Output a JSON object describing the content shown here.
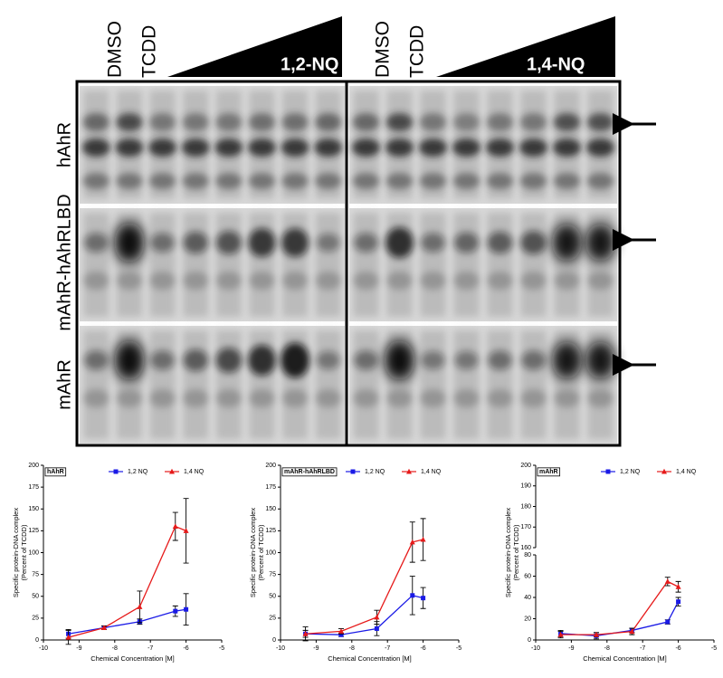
{
  "gel": {
    "lanes_left": [
      "DMSO",
      "TCDD"
    ],
    "treatment_left": "1,2-NQ",
    "lanes_right": [
      "DMSO",
      "TCDD"
    ],
    "treatment_right": "1,4-NQ",
    "rows": [
      "hAhR",
      "mAhR-hAhRLBD",
      "mAhR"
    ]
  },
  "chart_data": [
    {
      "type": "line",
      "title": "hAhR",
      "xlabel": "Chemical Concentration [M]",
      "ylabel": [
        "Specific protein-DNA complex",
        "(Percent of TCDD)"
      ],
      "x": [
        -9.3,
        -8.3,
        -7.3,
        -6.3,
        -6.0
      ],
      "xlim": [
        -10,
        -5
      ],
      "xticks": [
        -10,
        -9,
        -8,
        -7,
        -6,
        -5
      ],
      "ylim": [
        0,
        200
      ],
      "yticks": [
        0,
        25,
        50,
        75,
        100,
        125,
        150,
        175,
        200
      ],
      "series": [
        {
          "name": "1,2 NQ",
          "color": "#1a1ae6",
          "marker": "square",
          "values": [
            7,
            14,
            21,
            33,
            35
          ],
          "errors": [
            5,
            2,
            3,
            6,
            18
          ]
        },
        {
          "name": "1,4 NQ",
          "color": "#e61a1a",
          "marker": "triangle",
          "values": [
            3,
            14,
            38,
            130,
            125
          ],
          "errors": [
            8,
            2,
            18,
            16,
            37
          ]
        }
      ]
    },
    {
      "type": "line",
      "title": "mAhR-hAhRLBD",
      "xlabel": "Chemical Concentration [M]",
      "ylabel": [
        "Specific protein-DNA complex",
        "(Percent of TCDD)"
      ],
      "x": [
        -9.3,
        -8.3,
        -7.3,
        -6.3,
        -6.0
      ],
      "xlim": [
        -10,
        -5
      ],
      "xticks": [
        -10,
        -9,
        -8,
        -7,
        -6,
        -5
      ],
      "ylim": [
        0,
        200
      ],
      "yticks": [
        0,
        25,
        50,
        75,
        100,
        125,
        150,
        175,
        200
      ],
      "series": [
        {
          "name": "1,2 NQ",
          "color": "#1a1ae6",
          "marker": "square",
          "values": [
            7,
            6,
            13,
            51,
            48
          ],
          "errors": [
            8,
            2,
            8,
            22,
            12
          ]
        },
        {
          "name": "1,4 NQ",
          "color": "#e61a1a",
          "marker": "triangle",
          "values": [
            7,
            10,
            26,
            112,
            115
          ],
          "errors": [
            4,
            3,
            8,
            23,
            24
          ]
        }
      ]
    },
    {
      "type": "line",
      "title": "mAhR",
      "xlabel": "Chemical Concentration [M]",
      "ylabel": [
        "Specific protein-DNA complex",
        "(Percent of TCDD)"
      ],
      "x": [
        -9.3,
        -8.3,
        -7.3,
        -6.3,
        -6.0
      ],
      "xlim": [
        -10,
        -5
      ],
      "xticks": [
        -10,
        -9,
        -8,
        -7,
        -6,
        -5
      ],
      "ylim": [
        0,
        80
      ],
      "yticks": [
        0,
        20,
        40,
        60,
        80
      ],
      "ybreak_lim": [
        160,
        200
      ],
      "ybreak_ticks": [
        160,
        170,
        180,
        190,
        200
      ],
      "series": [
        {
          "name": "1,2 NQ",
          "color": "#1a1ae6",
          "marker": "square",
          "values": [
            6,
            4,
            9,
            17,
            36
          ],
          "errors": [
            3,
            3,
            2,
            2,
            4
          ]
        },
        {
          "name": "1,4 NQ",
          "color": "#e61a1a",
          "marker": "triangle",
          "values": [
            5,
            5,
            8,
            55,
            50
          ],
          "errors": [
            3,
            2,
            3,
            4,
            5
          ]
        }
      ]
    }
  ]
}
